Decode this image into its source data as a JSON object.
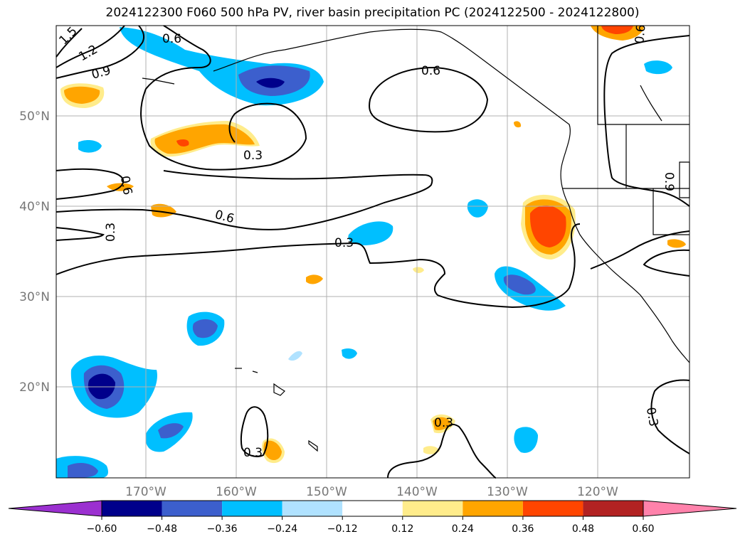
{
  "title": "2024122300 F060 500 hPa PV, river basin precipitation PC (2024122500 - 2024122800)",
  "map": {
    "lon_labels": [
      "170°W",
      "160°W",
      "150°W",
      "140°W",
      "130°W",
      "120°W"
    ],
    "lat_labels": [
      "50°N",
      "40°N",
      "30°N",
      "20°N"
    ]
  },
  "pv_contour_labels": [
    "1.5",
    "1.2",
    "0.9",
    "0.6",
    "0.6",
    "0.6",
    "0.3",
    "0.6",
    "0.6",
    "0.3",
    "0.3",
    "0.9",
    "0.3",
    "0.3",
    "0.3"
  ],
  "colorbar": {
    "ticks": [
      "−0.60",
      "−0.48",
      "−0.36",
      "−0.24",
      "−0.12",
      "0.12",
      "0.24",
      "0.36",
      "0.48",
      "0.60"
    ],
    "colors": [
      "#9b30d0",
      "#00008b",
      "#3c5fcd",
      "#00bfff",
      "#b0e2ff",
      "#ffffff",
      "#ffec8b",
      "#ffa500",
      "#ff4500",
      "#b22222",
      "#ff82ab"
    ]
  }
}
